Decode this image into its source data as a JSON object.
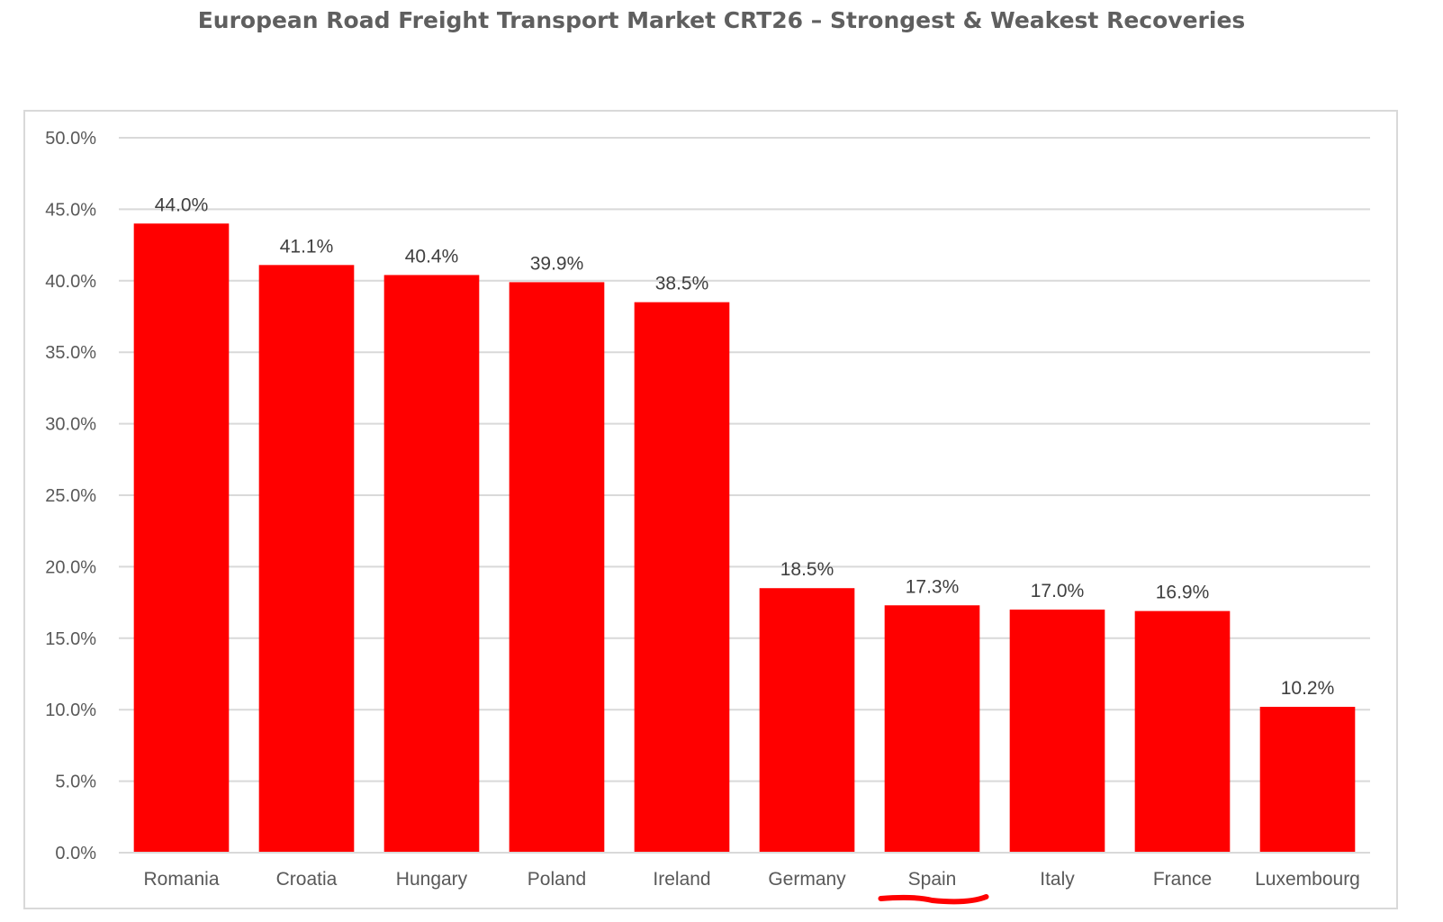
{
  "chart_data": {
    "type": "bar",
    "title": "European Road Freight Transport Market CRT26 – Strongest & Weakest Recoveries",
    "xlabel": "",
    "ylabel": "",
    "categories": [
      "Romania",
      "Croatia",
      "Hungary",
      "Poland",
      "Ireland",
      "Germany",
      "Spain",
      "Italy",
      "France",
      "Luxembourg"
    ],
    "values": [
      44.0,
      41.1,
      40.4,
      39.9,
      38.5,
      18.5,
      17.3,
      17.0,
      16.9,
      10.2
    ],
    "data_labels": [
      "44.0%",
      "41.1%",
      "40.4%",
      "39.9%",
      "38.5%",
      "18.5%",
      "17.3%",
      "17.0%",
      "16.9%",
      "10.2%"
    ],
    "ylim": [
      0,
      50
    ],
    "yticks": [
      "0.0%",
      "5.0%",
      "10.0%",
      "15.0%",
      "20.0%",
      "25.0%",
      "30.0%",
      "35.0%",
      "40.0%",
      "45.0%",
      "50.0%"
    ],
    "grid": true,
    "legend": "none",
    "highlighted_category": "Spain",
    "colors": {
      "bar": "#ff0000",
      "grid": "#d9d9d9",
      "highlight_underline": "#ff0000"
    }
  }
}
